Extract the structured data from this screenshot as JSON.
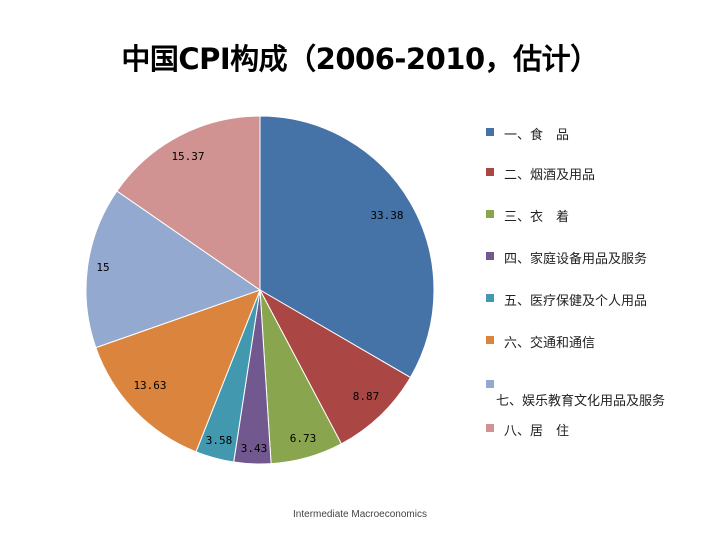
{
  "title": "中国CPI构成（2006-2010，估计）",
  "footer": "Intermediate Macroeconomics",
  "chart_data": {
    "type": "pie",
    "values": [
      33.38,
      8.87,
      6.73,
      3.43,
      3.58,
      13.63,
      15,
      15.37
    ],
    "labels": [
      "33.38",
      "8.87",
      "6.73",
      "3.43",
      "3.58",
      "13.63",
      "15",
      "15.37"
    ],
    "legend": [
      "一、食　品",
      "二、烟酒及用品",
      "三、衣　着",
      "四、家庭设备用品及服务",
      "五、医疗保健及个人用品",
      "六、交通和通信",
      "七、娱乐教育文化用品及服务",
      "八、居　住"
    ],
    "colors": [
      "#4572a7",
      "#aa4643",
      "#89a54e",
      "#71588f",
      "#4198af",
      "#db843d",
      "#93a9cf",
      "#d09392"
    ],
    "start": "12 o'clock",
    "direction": "clockwise",
    "legend_position": "right"
  }
}
